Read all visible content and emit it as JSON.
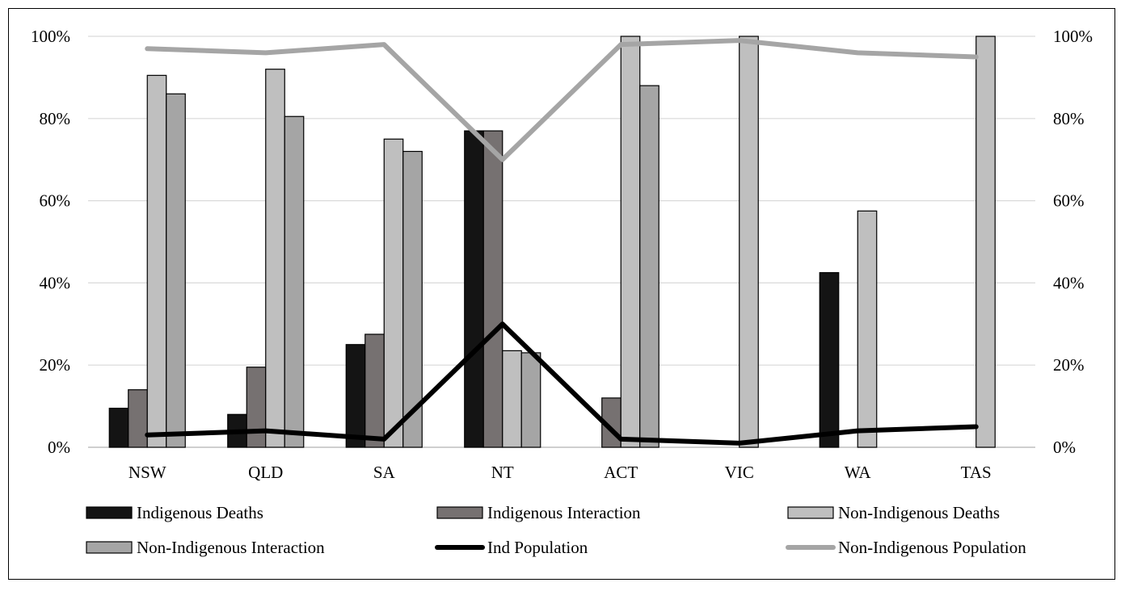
{
  "chart_data": {
    "type": "bar",
    "title": "",
    "xlabel": "",
    "ylabel": "",
    "ylim": [
      0,
      100
    ],
    "y_ticks": [
      "0%",
      "20%",
      "40%",
      "60%",
      "80%",
      "100%"
    ],
    "y_tick_values": [
      0,
      20,
      40,
      60,
      80,
      100
    ],
    "grid": true,
    "legend_position": "bottom",
    "categories": [
      "NSW",
      "QLD",
      "SA",
      "NT",
      "ACT",
      "VIC",
      "WA",
      "TAS"
    ],
    "series": [
      {
        "name": "Indigenous Deaths",
        "kind": "bar",
        "color": "#141414",
        "values": [
          9.5,
          8,
          25,
          77,
          0,
          0,
          42.5,
          0
        ]
      },
      {
        "name": "Indigenous Interaction",
        "kind": "bar",
        "color": "#767171",
        "values": [
          14,
          19.5,
          27.5,
          77,
          12,
          0,
          0,
          0
        ]
      },
      {
        "name": "Non-Indigenous Deaths",
        "kind": "bar",
        "color": "#bfbfbf",
        "values": [
          90.5,
          92,
          75,
          23.5,
          100,
          100,
          57.5,
          100
        ]
      },
      {
        "name": "Non-Indigenous Interaction",
        "kind": "bar",
        "color": "#a5a5a5",
        "values": [
          86,
          80.5,
          72,
          23,
          88,
          0,
          0,
          0
        ]
      },
      {
        "name": "Ind Population",
        "kind": "line",
        "color": "#000000",
        "values": [
          3,
          4,
          2,
          30,
          2,
          1,
          4,
          5
        ]
      },
      {
        "name": "Non-Indigenous Population",
        "kind": "line",
        "color": "#a5a5a5",
        "values": [
          97,
          96,
          98,
          70,
          98,
          99,
          96,
          95
        ]
      }
    ]
  }
}
